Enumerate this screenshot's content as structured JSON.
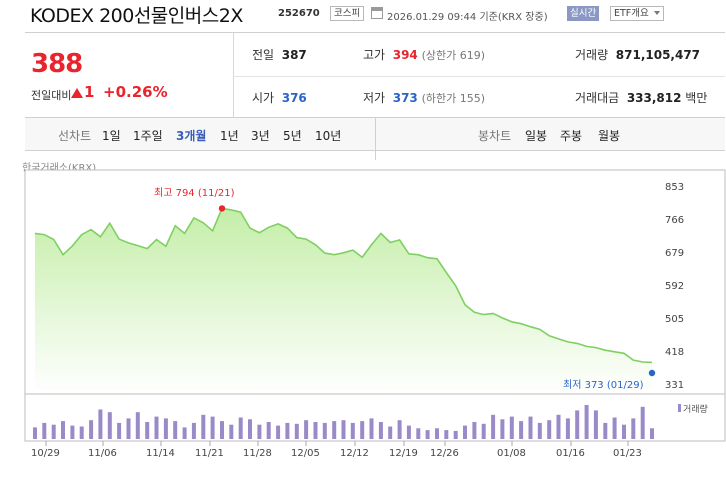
{
  "header": {
    "title": "KODEX 200선물인버스2X",
    "code": "252670",
    "market_badge": "코스피",
    "datetime": "2026.01.29 09:44",
    "basis": "기준(KRX 장중)",
    "realtime_badge": "실시간",
    "etf_dropdown": "ETF개요"
  },
  "price": {
    "current": "388",
    "change_label": "전일대비",
    "change_value": "1",
    "change_percent": "+0.26%",
    "prev_close_label": "전일",
    "prev_close": "387",
    "open_label": "시가",
    "open": "376",
    "high_label": "고가",
    "high": "394",
    "upper_limit": "(상한가 619)",
    "low_label": "저가",
    "low": "373",
    "lower_limit": "(하한가 155)",
    "volume_label": "거래량",
    "volume": "871,105,477",
    "amount_label": "거래대금",
    "amount": "333,812",
    "amount_unit": "백만"
  },
  "tabs": {
    "line_label": "선차트",
    "periods": [
      "1일",
      "1주일",
      "3개월",
      "1년",
      "3년",
      "5년",
      "10년"
    ],
    "active_period": "3개월",
    "candle_label": "봉차트",
    "candles": [
      "일봉",
      "주봉",
      "월봉"
    ]
  },
  "chart_data": {
    "type": "area",
    "source_label": "한국거래소(KRX)",
    "y_ticks": [
      853,
      766,
      679,
      592,
      505,
      418,
      331
    ],
    "ylim": [
      331,
      853
    ],
    "x_ticks": [
      "10/29",
      "11/06",
      "11/14",
      "11/21",
      "11/28",
      "12/05",
      "12/12",
      "12/19",
      "12/26",
      "01/08",
      "01/16",
      "01/23"
    ],
    "max_annotation": "최고 794 (11/21)",
    "min_annotation": "최저 373 (01/29)",
    "volume_label": "거래량",
    "colors": {
      "line": "#7fcf63",
      "fill_top": "#c4eea8",
      "fill_bottom": "#ffffff",
      "volume": "#9a8ac7",
      "max": "#e8242c",
      "min": "#2b64c8"
    },
    "price_series": [
      728,
      725,
      712,
      672,
      695,
      725,
      738,
      719,
      755,
      713,
      703,
      696,
      688,
      712,
      694,
      748,
      728,
      769,
      756,
      735,
      794,
      790,
      784,
      742,
      730,
      744,
      753,
      742,
      717,
      713,
      698,
      676,
      672,
      677,
      684,
      665,
      698,
      728,
      704,
      711,
      674,
      672,
      664,
      661,
      625,
      590,
      540,
      520,
      514,
      517,
      505,
      495,
      490,
      482,
      475,
      458,
      450,
      442,
      438,
      430,
      427,
      420,
      416,
      412,
      394,
      389,
      388
    ],
    "volume_series": [
      13,
      18,
      16,
      20,
      15,
      14,
      21,
      33,
      30,
      18,
      23,
      30,
      19,
      25,
      23,
      20,
      13,
      18,
      27,
      25,
      20,
      16,
      24,
      22,
      16,
      19,
      15,
      18,
      17,
      21,
      19,
      18,
      20,
      21,
      18,
      20,
      23,
      19,
      14,
      21,
      15,
      12,
      10,
      12,
      10,
      9,
      15,
      19,
      17,
      27,
      22,
      25,
      20,
      25,
      18,
      21,
      27,
      23,
      32,
      38,
      32,
      18,
      24,
      16,
      23,
      36,
      12
    ]
  }
}
